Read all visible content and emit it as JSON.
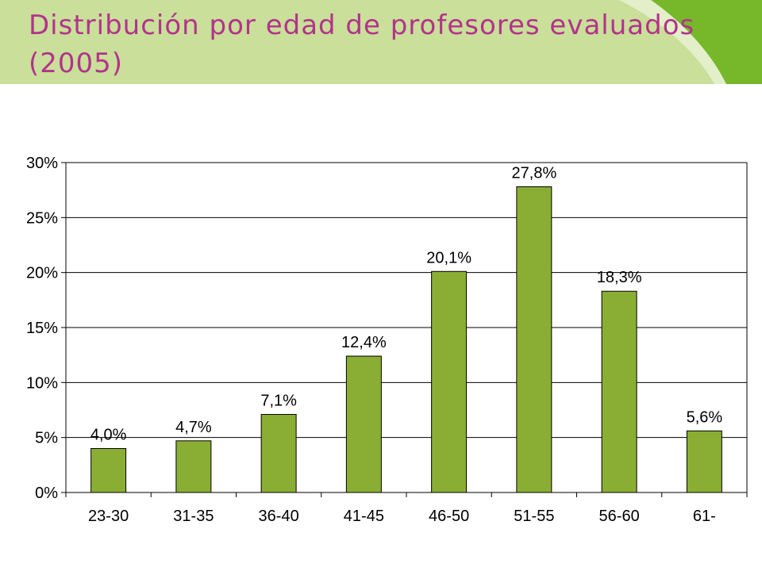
{
  "slide": {
    "title": "Distribución por edad de profesores evaluados (2005)",
    "title_color": "#b3338a",
    "header_band_color": "#c9df9a",
    "header_accent_color": "#76b82a"
  },
  "chart_data": {
    "type": "bar",
    "title": "",
    "xlabel": "",
    "ylabel": "",
    "categories": [
      "23-30",
      "31-35",
      "36-40",
      "41-45",
      "46-50",
      "51-55",
      "56-60",
      "61-"
    ],
    "values": [
      4.0,
      4.7,
      7.1,
      12.4,
      20.1,
      27.8,
      18.3,
      5.6
    ],
    "data_labels": [
      "4,0%",
      "4,7%",
      "7,1%",
      "12,4%",
      "20,1%",
      "27,8%",
      "18,3%",
      "5,6%"
    ],
    "ylim": [
      0,
      30
    ],
    "yticks": [
      0,
      5,
      10,
      15,
      20,
      25,
      30
    ],
    "ytick_labels": [
      "0%",
      "5%",
      "10%",
      "15%",
      "20%",
      "25%",
      "30%"
    ],
    "grid": true,
    "legend": "none",
    "bar_color": "#8aae33",
    "bar_edge_color": "#000000"
  }
}
